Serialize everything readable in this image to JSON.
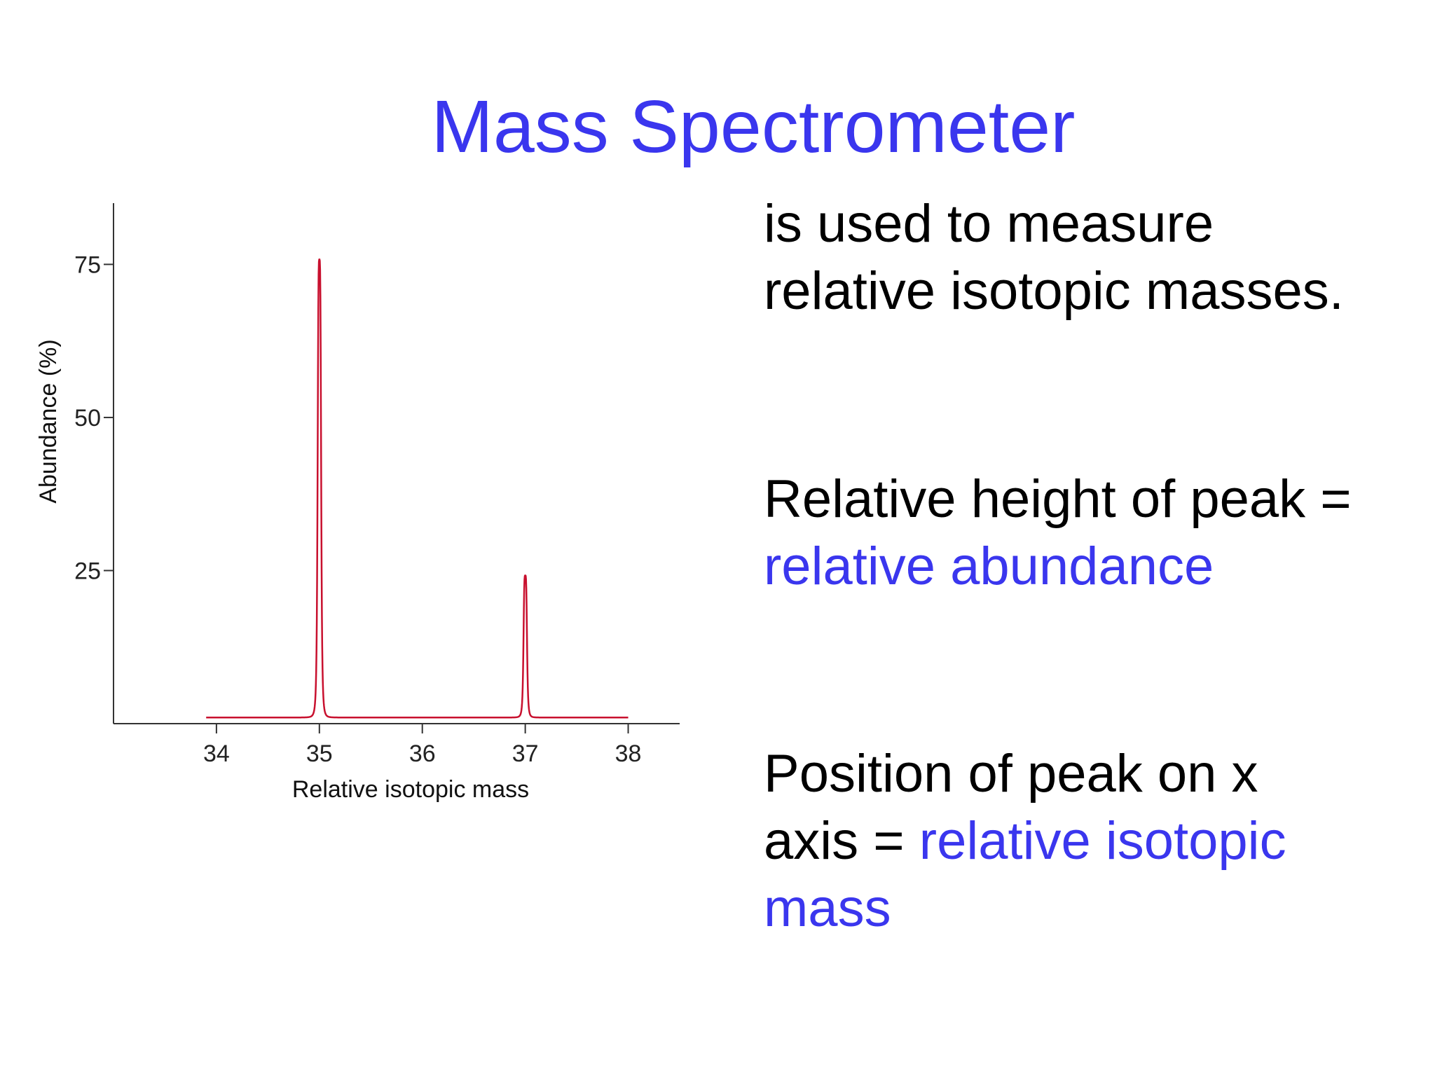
{
  "title": "Mass Spectrometer",
  "text": {
    "line1": "is used to measure",
    "line2": "relative isotopic masses.",
    "line3": "Relative height of peak =",
    "line4": "relative abundance",
    "line5a": "Position of peak on x",
    "line6a": "axis = ",
    "line6b": "relative isotopic",
    "line7": "mass"
  },
  "colors": {
    "accent_text": "#3a36ee",
    "line": "#c8102e",
    "axis": "#333333"
  },
  "chart_data": {
    "type": "line",
    "xlabel": "Relative isotopic mass",
    "ylabel": "Abundance (%)",
    "x_ticks": [
      34,
      35,
      36,
      37,
      38
    ],
    "y_ticks": [
      25,
      50,
      75
    ],
    "xlim": [
      33.0,
      38.5
    ],
    "ylim": [
      0,
      85
    ],
    "baseline": 1,
    "x_range": [
      33.9,
      38.0
    ],
    "peaks": [
      {
        "x": 35,
        "y": 75.8
      },
      {
        "x": 37,
        "y": 24.2
      }
    ],
    "grid": false,
    "legend": "none"
  }
}
